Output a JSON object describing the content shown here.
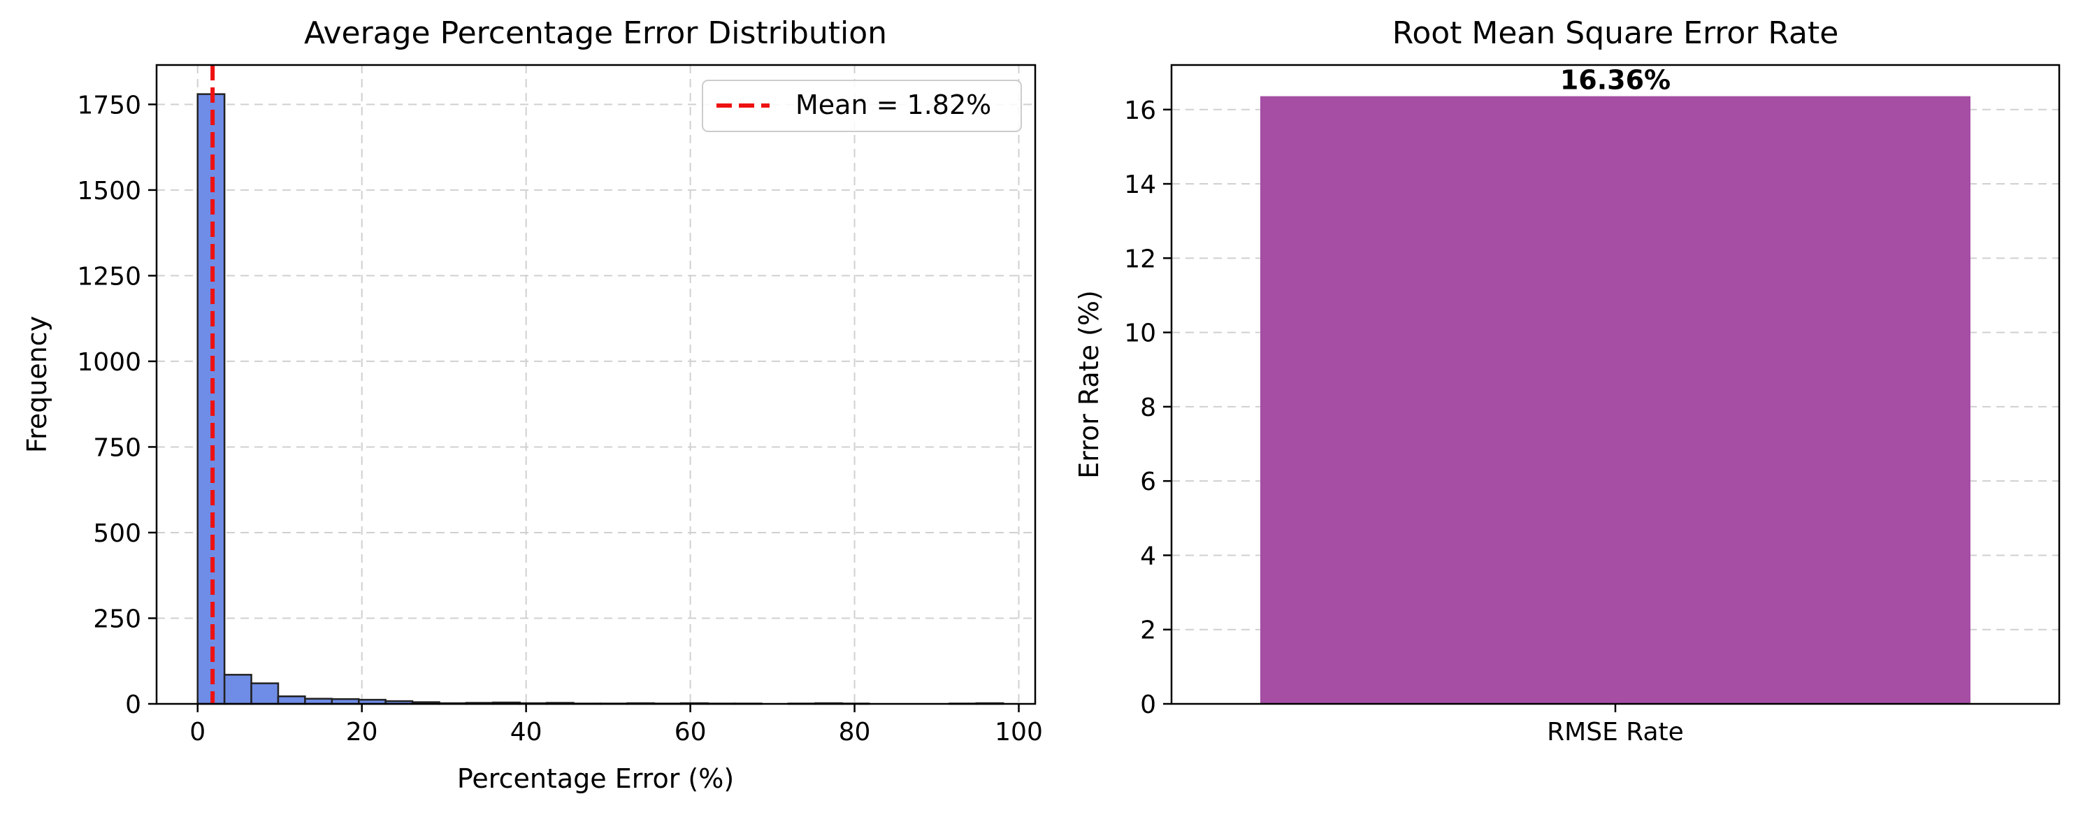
{
  "chart_data": [
    {
      "type": "bar",
      "title": "Average Percentage Error Distribution",
      "xlabel": "Percentage Error (%)",
      "ylabel": "Frequency",
      "xlim": [
        -5,
        102
      ],
      "ylim": [
        0,
        1865
      ],
      "xticks": [
        0,
        20,
        40,
        60,
        80,
        100
      ],
      "yticks": [
        0,
        250,
        500,
        750,
        1000,
        1250,
        1500,
        1750
      ],
      "grid": true,
      "bin_width": 3.27,
      "bins": [
        {
          "x0": 0.0,
          "count": 1780
        },
        {
          "x0": 3.27,
          "count": 85
        },
        {
          "x0": 6.54,
          "count": 60
        },
        {
          "x0": 9.81,
          "count": 22
        },
        {
          "x0": 13.08,
          "count": 15
        },
        {
          "x0": 16.35,
          "count": 14
        },
        {
          "x0": 19.62,
          "count": 12
        },
        {
          "x0": 22.89,
          "count": 8
        },
        {
          "x0": 26.16,
          "count": 5
        },
        {
          "x0": 29.43,
          "count": 2
        },
        {
          "x0": 32.7,
          "count": 3
        },
        {
          "x0": 35.97,
          "count": 4
        },
        {
          "x0": 39.24,
          "count": 2
        },
        {
          "x0": 42.51,
          "count": 3
        },
        {
          "x0": 45.78,
          "count": 1
        },
        {
          "x0": 49.05,
          "count": 1
        },
        {
          "x0": 52.32,
          "count": 2
        },
        {
          "x0": 55.59,
          "count": 1
        },
        {
          "x0": 58.86,
          "count": 2
        },
        {
          "x0": 62.13,
          "count": 1
        },
        {
          "x0": 65.4,
          "count": 1
        },
        {
          "x0": 68.67,
          "count": 0
        },
        {
          "x0": 71.94,
          "count": 1
        },
        {
          "x0": 75.21,
          "count": 2
        },
        {
          "x0": 78.48,
          "count": 1
        },
        {
          "x0": 81.75,
          "count": 0
        },
        {
          "x0": 85.02,
          "count": 0
        },
        {
          "x0": 88.29,
          "count": 0
        },
        {
          "x0": 91.56,
          "count": 1
        },
        {
          "x0": 94.83,
          "count": 2
        }
      ],
      "bar_color": "#6f8ce6",
      "mean_line": {
        "value": 1.82,
        "label": "Mean = 1.82%",
        "color": "#ee1111"
      },
      "legend_position": "upper right"
    },
    {
      "type": "bar",
      "title": "Root Mean Square Error Rate",
      "xlabel": "",
      "ylabel": "Error Rate (%)",
      "ylim": [
        0,
        17.2
      ],
      "yticks": [
        0,
        2,
        4,
        6,
        8,
        10,
        12,
        14,
        16
      ],
      "grid": true,
      "categories": [
        "RMSE Rate"
      ],
      "values": [
        16.36
      ],
      "data_labels": [
        "16.36%"
      ],
      "bar_color": "#a54ea4"
    }
  ]
}
